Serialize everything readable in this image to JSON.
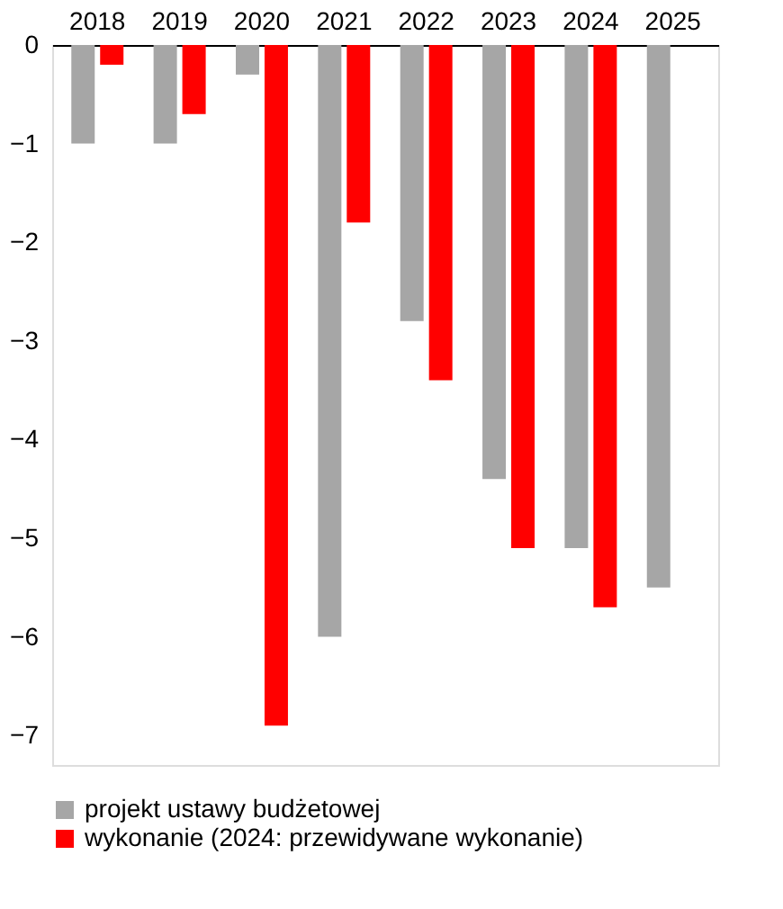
{
  "chart_data": {
    "type": "bar",
    "categories": [
      "2018",
      "2019",
      "2020",
      "2021",
      "2022",
      "2023",
      "2024",
      "2025"
    ],
    "series": [
      {
        "name": "projekt ustawy budżetowej",
        "color": "#a6a6a6",
        "values": [
          -1.0,
          -1.0,
          -0.3,
          -6.0,
          -2.8,
          -4.4,
          -5.1,
          -5.5
        ]
      },
      {
        "name": "wykonanie (2024: przewidywane wykonanie)",
        "color": "#ff0000",
        "values": [
          -0.2,
          -0.7,
          -6.9,
          -1.8,
          -3.4,
          -5.1,
          -5.7,
          null
        ]
      }
    ],
    "ylim": [
      -7.3,
      0
    ],
    "yticks": [
      -7,
      -6,
      -5,
      -4,
      -3,
      -2,
      -1,
      0
    ],
    "grid": false,
    "legend": "bottom"
  }
}
